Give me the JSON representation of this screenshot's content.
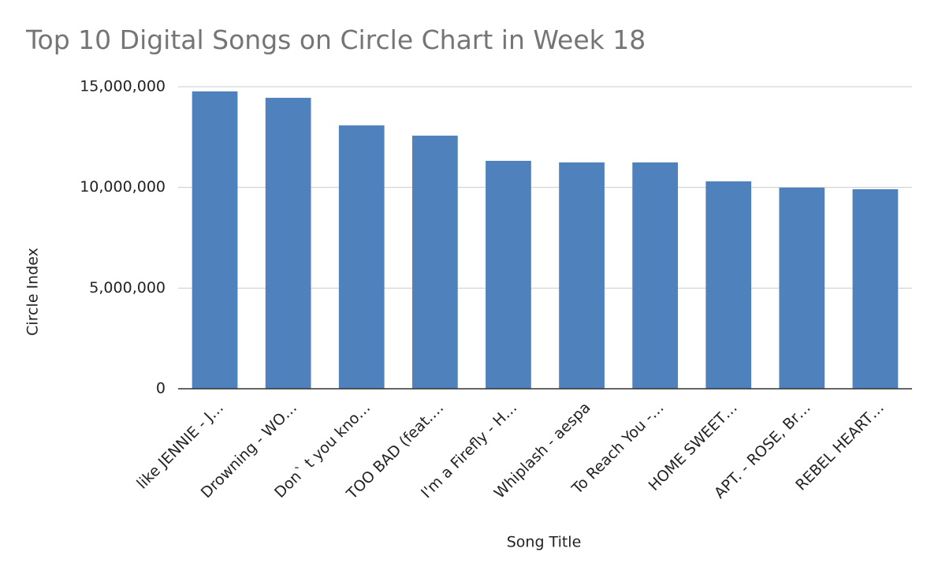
{
  "chart_data": {
    "type": "bar",
    "title": "Top 10 Digital Songs on Circle Chart in Week 18",
    "x_label": "Song Title",
    "y_label": "Circle Index",
    "categories": [
      "like JENNIE - J…",
      "Drowning - WO…",
      "Don` t you kno…",
      "TOO BAD (feat.…",
      "I'm a Firefly - H…",
      "Whiplash - aespa",
      "To Reach You -…",
      "HOME SWEET…",
      "APT. - ROSE, Br…",
      "REBEL HEART…"
    ],
    "values": [
      14770000,
      14450000,
      13080000,
      12570000,
      11320000,
      11240000,
      11240000,
      10300000,
      9990000,
      9910000
    ],
    "color": "#4f81bd",
    "ylim": [
      0,
      15000000
    ],
    "yticks": [
      0,
      {
        "value": 5000000,
        "label": "5,000,000"
      },
      {
        "value": 10000000,
        "label": "10,000,000"
      },
      {
        "value": 15000000,
        "label": "15,000,000"
      }
    ],
    "grid": true
  }
}
